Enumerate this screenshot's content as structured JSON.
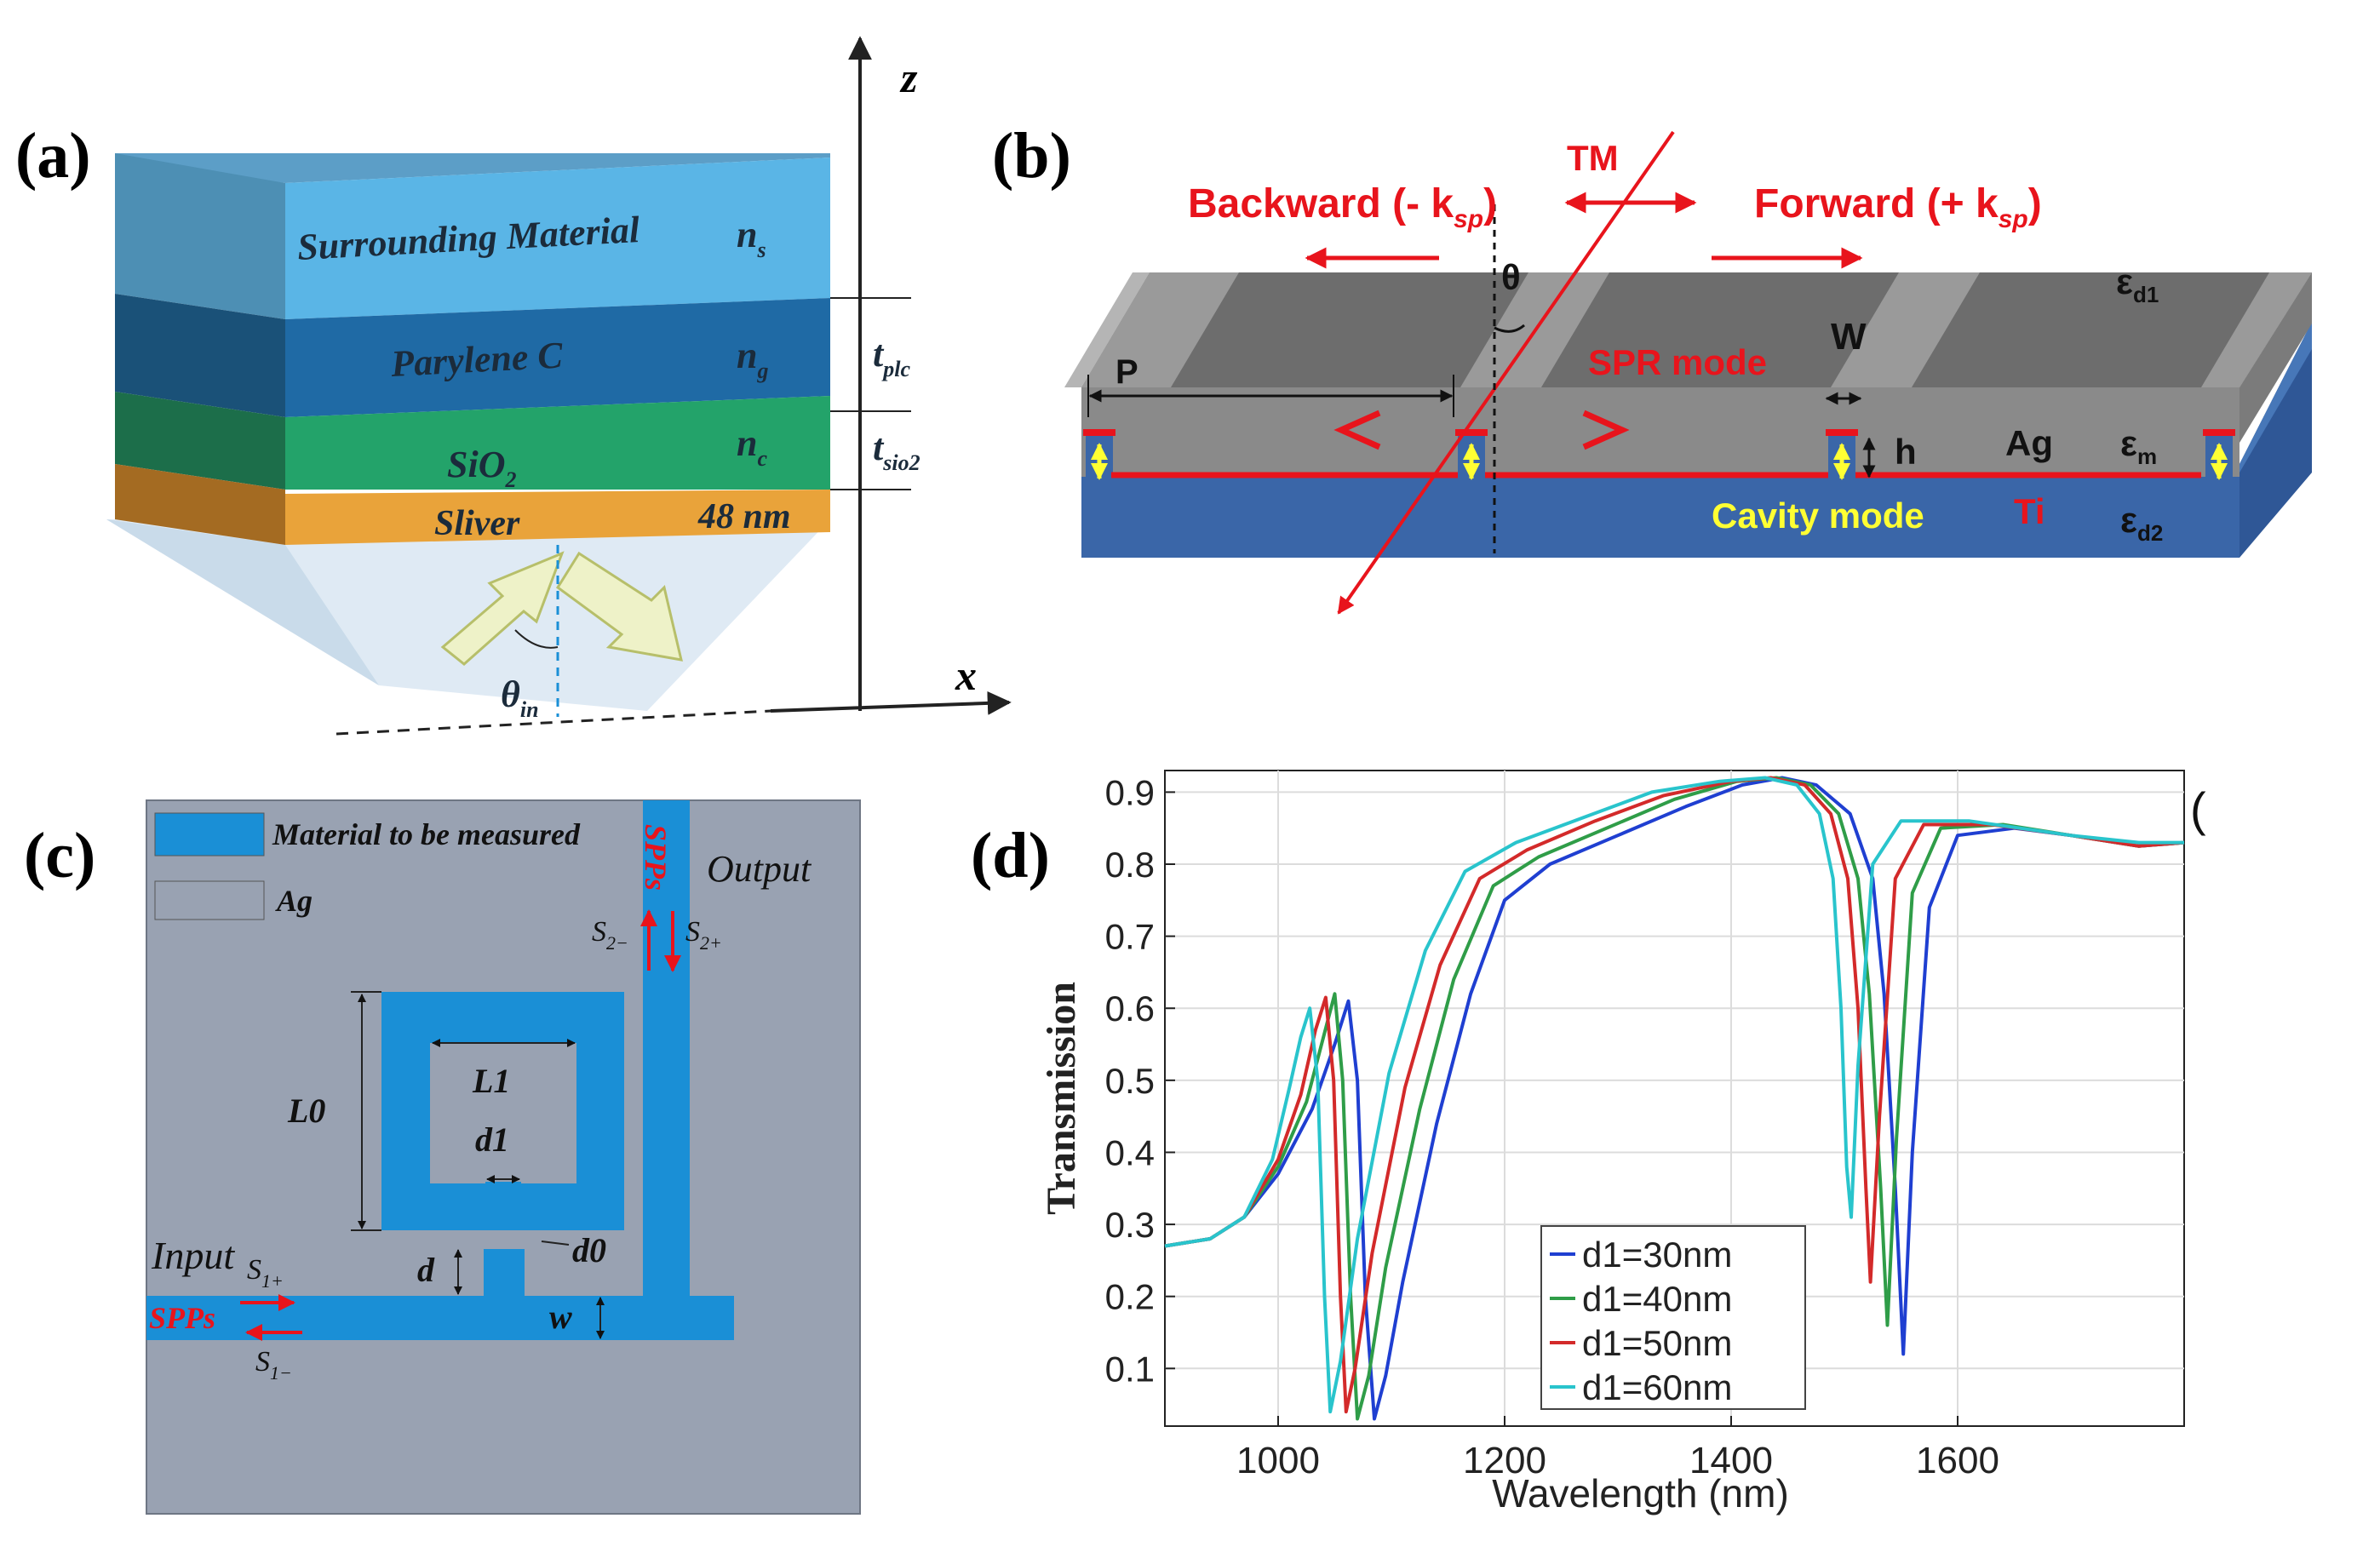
{
  "panel_a": {
    "label": "(a)",
    "axis_z": "z",
    "axis_x": "x",
    "layers": [
      {
        "name": "Surrounding Material",
        "n_main": "n",
        "n_sub": "s",
        "thickness_main": "",
        "thickness_sub": ""
      },
      {
        "name": "Parylene C",
        "n_main": "n",
        "n_sub": "g",
        "thickness_main": "t",
        "thickness_sub": "plc"
      },
      {
        "name_main": "SiO",
        "name_sub": "2",
        "n_main": "n",
        "n_sub": "c",
        "thickness_main": "t",
        "thickness_sub": "sio2"
      },
      {
        "name": "Sliver",
        "thickness_label": "48 nm"
      }
    ],
    "angle_main": "θ",
    "angle_sub": "in",
    "colors": {
      "top": "#5ab5e6",
      "parylene": "#1f6aa5",
      "sio2": "#23a36a",
      "silver": "#e9a33a",
      "prism": "#dce8f3"
    }
  },
  "panel_b": {
    "label": "(b)",
    "tm": "TM",
    "backward_main": "Backward (- k",
    "backward_sub": "sp",
    "backward_end": ")",
    "forward_main": "Forward (+ k",
    "forward_sub": "sp",
    "forward_end": ")",
    "theta": "θ",
    "spr_mode": "SPR mode",
    "p": "P",
    "w": "W",
    "h": "h",
    "ag": "Ag",
    "ti": "Ti",
    "cavity_mode": "Cavity mode",
    "eps_d1_main": "ε",
    "eps_d1_sub": "d1",
    "eps_m_main": "ε",
    "eps_m_sub": "m",
    "eps_d2_main": "ε",
    "eps_d2_sub": "d2",
    "colors": {
      "red": "#e8141c",
      "yellow": "#ffff33",
      "metal_top": "#6d6d6d",
      "substrate": "#3a66a8"
    }
  },
  "panel_c": {
    "label": "(c)",
    "legend_material": "Material to be measured",
    "legend_ag": "Ag",
    "output": "Output",
    "input": "Input",
    "spps_top": "SPPs",
    "spps_left": "SPPs",
    "s2m_main": "S",
    "s2m_sub": "2−",
    "s2p_main": "S",
    "s2p_sub": "2+",
    "s1p_main": "S",
    "s1p_sub": "1+",
    "s1m_main": "S",
    "s1m_sub": "1−",
    "l0": "L0",
    "l1": "L1",
    "d1": "d1",
    "d0": "d0",
    "d": "d",
    "w": "w",
    "colors": {
      "background": "#99a2b2",
      "material": "#1a8fd6"
    }
  },
  "panel_d": {
    "label": "(d)",
    "edge_mark": "("
  },
  "chart_data": {
    "type": "line",
    "title": "",
    "xlabel": "Wavelength (nm)",
    "ylabel": "Transmission",
    "xlim": [
      900,
      1800
    ],
    "ylim": [
      0.02,
      0.93
    ],
    "x_ticks": [
      1000,
      1200,
      1400,
      1600
    ],
    "y_ticks": [
      0.1,
      0.2,
      0.3,
      0.4,
      0.5,
      0.6,
      0.7,
      0.8,
      0.9
    ],
    "grid": true,
    "legend_position": "bottom-center",
    "series": [
      {
        "name": "d1=30nm",
        "color": "#1f3fd1",
        "points": [
          [
            900,
            0.27
          ],
          [
            940,
            0.28
          ],
          [
            970,
            0.31
          ],
          [
            1000,
            0.37
          ],
          [
            1030,
            0.46
          ],
          [
            1050,
            0.55
          ],
          [
            1062,
            0.61
          ],
          [
            1070,
            0.5
          ],
          [
            1077,
            0.2
          ],
          [
            1085,
            0.03
          ],
          [
            1095,
            0.09
          ],
          [
            1110,
            0.22
          ],
          [
            1140,
            0.44
          ],
          [
            1170,
            0.62
          ],
          [
            1200,
            0.75
          ],
          [
            1240,
            0.8
          ],
          [
            1300,
            0.84
          ],
          [
            1360,
            0.88
          ],
          [
            1410,
            0.91
          ],
          [
            1445,
            0.92
          ],
          [
            1475,
            0.91
          ],
          [
            1505,
            0.87
          ],
          [
            1525,
            0.78
          ],
          [
            1535,
            0.62
          ],
          [
            1545,
            0.35
          ],
          [
            1552,
            0.12
          ],
          [
            1560,
            0.4
          ],
          [
            1575,
            0.74
          ],
          [
            1600,
            0.84
          ],
          [
            1650,
            0.85
          ],
          [
            1700,
            0.84
          ],
          [
            1760,
            0.825
          ],
          [
            1800,
            0.83
          ]
        ]
      },
      {
        "name": "d1=40nm",
        "color": "#2f9d48",
        "points": [
          [
            900,
            0.27
          ],
          [
            940,
            0.28
          ],
          [
            970,
            0.31
          ],
          [
            1000,
            0.38
          ],
          [
            1025,
            0.47
          ],
          [
            1040,
            0.56
          ],
          [
            1050,
            0.62
          ],
          [
            1057,
            0.5
          ],
          [
            1064,
            0.2
          ],
          [
            1070,
            0.03
          ],
          [
            1080,
            0.09
          ],
          [
            1095,
            0.24
          ],
          [
            1125,
            0.46
          ],
          [
            1155,
            0.64
          ],
          [
            1190,
            0.77
          ],
          [
            1230,
            0.81
          ],
          [
            1290,
            0.85
          ],
          [
            1350,
            0.89
          ],
          [
            1405,
            0.915
          ],
          [
            1440,
            0.92
          ],
          [
            1470,
            0.91
          ],
          [
            1495,
            0.87
          ],
          [
            1512,
            0.78
          ],
          [
            1522,
            0.62
          ],
          [
            1532,
            0.35
          ],
          [
            1538,
            0.16
          ],
          [
            1546,
            0.42
          ],
          [
            1560,
            0.76
          ],
          [
            1585,
            0.85
          ],
          [
            1640,
            0.855
          ],
          [
            1700,
            0.84
          ],
          [
            1760,
            0.825
          ],
          [
            1800,
            0.83
          ]
        ]
      },
      {
        "name": "d1=50nm",
        "color": "#d32a2a",
        "points": [
          [
            900,
            0.27
          ],
          [
            940,
            0.28
          ],
          [
            970,
            0.31
          ],
          [
            1000,
            0.39
          ],
          [
            1020,
            0.48
          ],
          [
            1033,
            0.57
          ],
          [
            1042,
            0.615
          ],
          [
            1049,
            0.5
          ],
          [
            1055,
            0.2
          ],
          [
            1060,
            0.04
          ],
          [
            1068,
            0.1
          ],
          [
            1083,
            0.26
          ],
          [
            1112,
            0.49
          ],
          [
            1143,
            0.66
          ],
          [
            1178,
            0.78
          ],
          [
            1220,
            0.82
          ],
          [
            1280,
            0.86
          ],
          [
            1340,
            0.895
          ],
          [
            1400,
            0.915
          ],
          [
            1435,
            0.92
          ],
          [
            1465,
            0.91
          ],
          [
            1488,
            0.87
          ],
          [
            1503,
            0.78
          ],
          [
            1512,
            0.6
          ],
          [
            1519,
            0.35
          ],
          [
            1523,
            0.22
          ],
          [
            1531,
            0.45
          ],
          [
            1545,
            0.78
          ],
          [
            1570,
            0.855
          ],
          [
            1630,
            0.855
          ],
          [
            1700,
            0.84
          ],
          [
            1760,
            0.825
          ],
          [
            1800,
            0.83
          ]
        ]
      },
      {
        "name": "d1=60nm",
        "color": "#29c4cc",
        "points": [
          [
            900,
            0.27
          ],
          [
            940,
            0.28
          ],
          [
            970,
            0.31
          ],
          [
            995,
            0.39
          ],
          [
            1010,
            0.49
          ],
          [
            1020,
            0.56
          ],
          [
            1028,
            0.6
          ],
          [
            1035,
            0.5
          ],
          [
            1041,
            0.2
          ],
          [
            1046,
            0.04
          ],
          [
            1055,
            0.11
          ],
          [
            1070,
            0.28
          ],
          [
            1098,
            0.51
          ],
          [
            1130,
            0.68
          ],
          [
            1165,
            0.79
          ],
          [
            1210,
            0.83
          ],
          [
            1270,
            0.865
          ],
          [
            1330,
            0.9
          ],
          [
            1390,
            0.915
          ],
          [
            1430,
            0.92
          ],
          [
            1458,
            0.91
          ],
          [
            1478,
            0.87
          ],
          [
            1490,
            0.78
          ],
          [
            1497,
            0.6
          ],
          [
            1502,
            0.38
          ],
          [
            1506,
            0.31
          ],
          [
            1512,
            0.52
          ],
          [
            1525,
            0.8
          ],
          [
            1550,
            0.86
          ],
          [
            1610,
            0.86
          ],
          [
            1700,
            0.84
          ],
          [
            1760,
            0.83
          ],
          [
            1800,
            0.83
          ]
        ]
      }
    ]
  }
}
